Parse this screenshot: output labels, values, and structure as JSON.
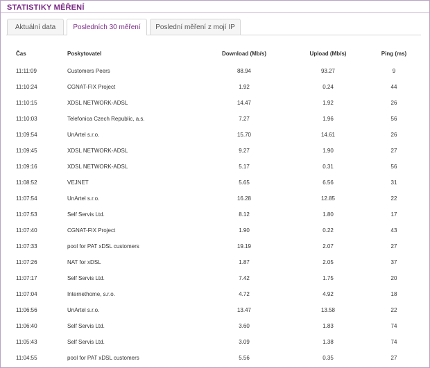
{
  "section_title": "STATISTIKY MĚŘENÍ",
  "tabs": [
    {
      "label": "Aktuální data",
      "active": false
    },
    {
      "label": "Posledních 30 měření",
      "active": true
    },
    {
      "label": "Poslední měření z mojí IP",
      "active": false
    }
  ],
  "colors": {
    "accent": "#7a2a86",
    "border": "#b8a2c4"
  },
  "table": {
    "headers": {
      "time": "Čas",
      "provider": "Poskytovatel",
      "download": "Download (Mb/s)",
      "upload": "Upload (Mb/s)",
      "ping": "Ping (ms)"
    },
    "rows": [
      {
        "time": "11:11:09",
        "provider": "Customers Peers",
        "download": "88.94",
        "upload": "93.27",
        "ping": "9"
      },
      {
        "time": "11:10:24",
        "provider": "CGNAT-FIX Project",
        "download": "1.92",
        "upload": "0.24",
        "ping": "44"
      },
      {
        "time": "11:10:15",
        "provider": "XDSL NETWORK-ADSL",
        "download": "14.47",
        "upload": "1.92",
        "ping": "26"
      },
      {
        "time": "11:10:03",
        "provider": "Telefonica Czech Republic, a.s.",
        "download": "7.27",
        "upload": "1.96",
        "ping": "56"
      },
      {
        "time": "11:09:54",
        "provider": "UnArtel s.r.o.",
        "download": "15.70",
        "upload": "14.61",
        "ping": "26"
      },
      {
        "time": "11:09:45",
        "provider": "XDSL NETWORK-ADSL",
        "download": "9.27",
        "upload": "1.90",
        "ping": "27"
      },
      {
        "time": "11:09:16",
        "provider": "XDSL NETWORK-ADSL",
        "download": "5.17",
        "upload": "0.31",
        "ping": "56"
      },
      {
        "time": "11:08:52",
        "provider": "VEJNET",
        "download": "5.65",
        "upload": "6.56",
        "ping": "31"
      },
      {
        "time": "11:07:54",
        "provider": "UnArtel s.r.o.",
        "download": "16.28",
        "upload": "12.85",
        "ping": "22"
      },
      {
        "time": "11:07:53",
        "provider": "Self Servis Ltd.",
        "download": "8.12",
        "upload": "1.80",
        "ping": "17"
      },
      {
        "time": "11:07:40",
        "provider": "CGNAT-FIX Project",
        "download": "1.90",
        "upload": "0.22",
        "ping": "43"
      },
      {
        "time": "11:07:33",
        "provider": "pool for PAT xDSL customers",
        "download": "19.19",
        "upload": "2.07",
        "ping": "27"
      },
      {
        "time": "11:07:26",
        "provider": "NAT for xDSL",
        "download": "1.87",
        "upload": "2.05",
        "ping": "37"
      },
      {
        "time": "11:07:17",
        "provider": "Self Servis Ltd.",
        "download": "7.42",
        "upload": "1.75",
        "ping": "20"
      },
      {
        "time": "11:07:04",
        "provider": "Internethome, s.r.o.",
        "download": "4.72",
        "upload": "4.92",
        "ping": "18"
      },
      {
        "time": "11:06:56",
        "provider": "UnArtel s.r.o.",
        "download": "13.47",
        "upload": "13.58",
        "ping": "22"
      },
      {
        "time": "11:06:40",
        "provider": "Self Servis Ltd.",
        "download": "3.60",
        "upload": "1.83",
        "ping": "74"
      },
      {
        "time": "11:05:43",
        "provider": "Self Servis Ltd.",
        "download": "3.09",
        "upload": "1.38",
        "ping": "74"
      },
      {
        "time": "11:04:55",
        "provider": "pool for PAT xDSL customers",
        "download": "5.56",
        "upload": "0.35",
        "ping": "27"
      }
    ]
  }
}
